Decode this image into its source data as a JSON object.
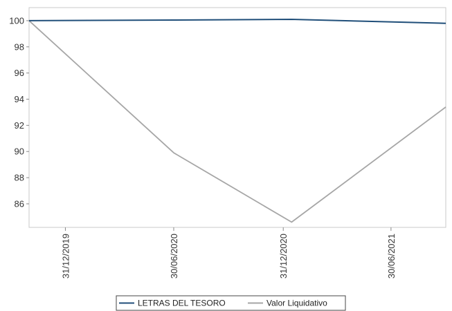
{
  "chart_data": {
    "type": "line",
    "title": "",
    "xlabel": "",
    "ylabel": "",
    "y_ticks": [
      86,
      88,
      90,
      92,
      94,
      96,
      98,
      100
    ],
    "ylim": [
      84.2,
      101.0
    ],
    "x_tick_labels": [
      "31/12/2019",
      "30/06/2020",
      "31/12/2020",
      "30/06/2021"
    ],
    "x": [
      "2019-10-31",
      "2020-06-30",
      "2021-01-14",
      "2021-09-30"
    ],
    "xlim": [
      "2019-10-31",
      "2021-09-30"
    ],
    "grid": false,
    "legend_position": "bottom",
    "series": [
      {
        "name": "LETRAS DEL TESORO",
        "color": "#1f4e79",
        "values": [
          100.0,
          100.05,
          100.1,
          99.8
        ]
      },
      {
        "name": "Valor Liquidativo",
        "color": "#a6a6a6",
        "values": [
          100.0,
          89.9,
          84.6,
          93.4
        ]
      }
    ]
  }
}
